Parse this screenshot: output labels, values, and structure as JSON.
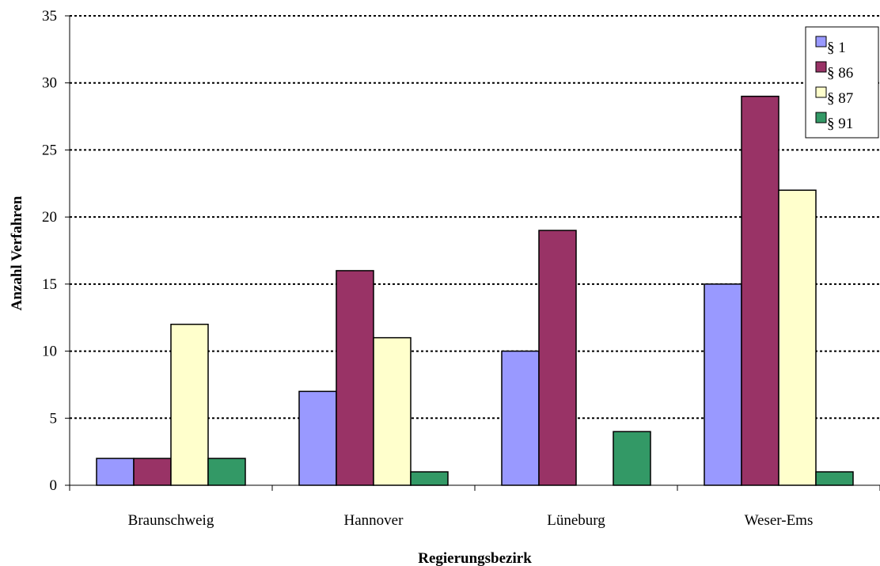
{
  "chart_data": {
    "type": "bar",
    "categories": [
      "Braunschweig",
      "Hannover",
      "Lüneburg",
      "Weser-Ems"
    ],
    "series": [
      {
        "name": "§ 1",
        "color": "#9999ff",
        "values": [
          2,
          7,
          10,
          15
        ]
      },
      {
        "name": "§ 86",
        "color": "#993366",
        "values": [
          2,
          16,
          19,
          29
        ]
      },
      {
        "name": "§ 87",
        "color": "#ffffcc",
        "values": [
          12,
          11,
          0,
          22
        ]
      },
      {
        "name": "§ 91",
        "color": "#339966",
        "values": [
          2,
          1,
          4,
          1
        ]
      }
    ],
    "title": "",
    "xlabel": "Regierungsbezirk",
    "ylabel": "Anzahl Verfahren",
    "ylim": [
      0,
      35
    ],
    "yticks": [
      "0",
      "5",
      "10",
      "15",
      "20",
      "25",
      "30",
      "35"
    ],
    "grid": true,
    "legend_position": "top-right"
  }
}
